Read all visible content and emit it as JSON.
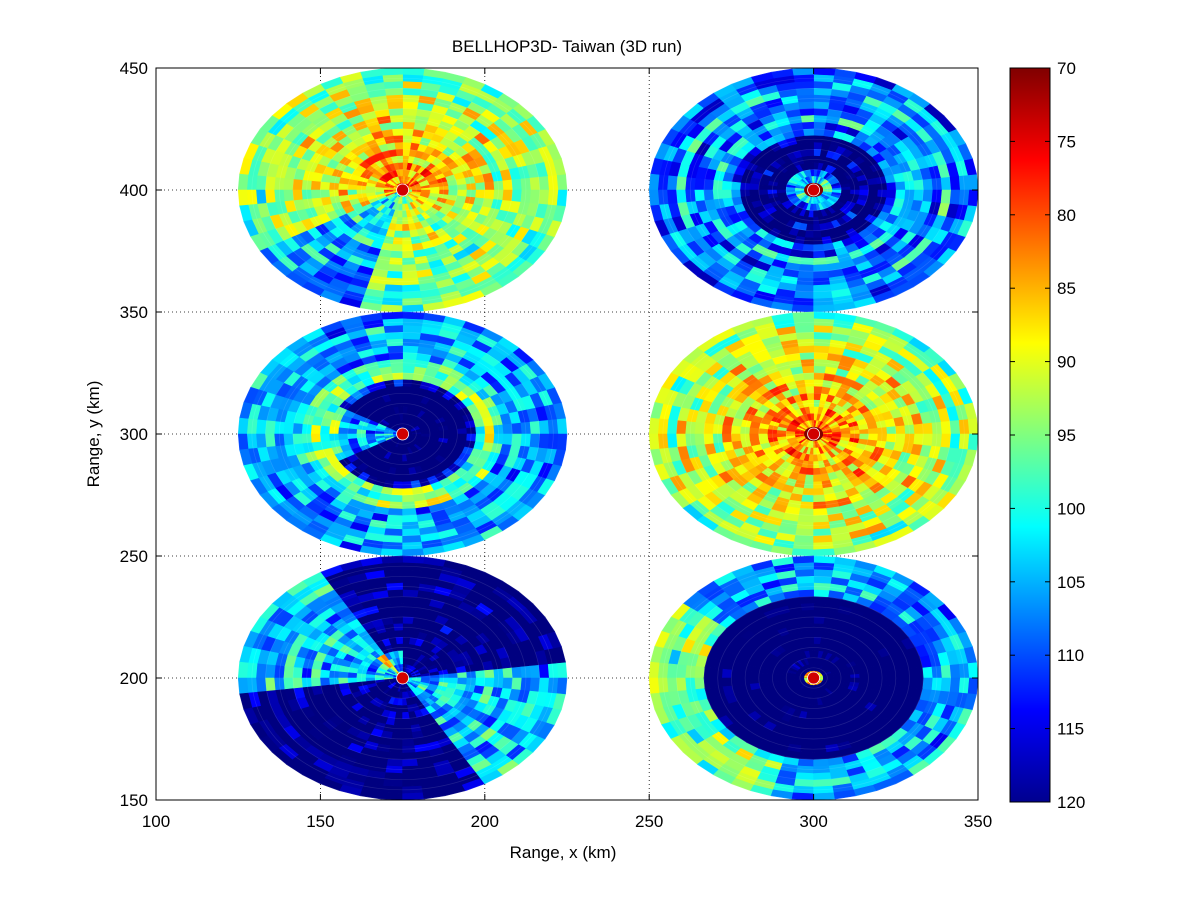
{
  "chart_data": {
    "type": "heatmap",
    "title": "BELLHOP3D- Taiwan (3D run)",
    "xlabel": "Range, x (km)",
    "ylabel": "Range, y (km)",
    "xlim": [
      100,
      350
    ],
    "ylim": [
      150,
      450
    ],
    "xticks": [
      100,
      150,
      200,
      250,
      300,
      350
    ],
    "yticks": [
      150,
      200,
      250,
      300,
      350,
      400,
      450
    ],
    "grid": "dotted",
    "colormap": "jet",
    "colorbar": {
      "range": [
        70,
        120
      ],
      "reversed": true,
      "ticks": [
        70,
        75,
        80,
        85,
        90,
        95,
        100,
        105,
        110,
        115,
        120
      ]
    },
    "panels": [
      {
        "center_x": 175,
        "center_y": 400,
        "radius_km": 50,
        "pattern": "hot-center-broad",
        "base_level": 98
      },
      {
        "center_x": 300,
        "center_y": 400,
        "radius_km": 50,
        "pattern": "rings-dark",
        "base_level": 108
      },
      {
        "center_x": 175,
        "center_y": 300,
        "radius_km": 50,
        "pattern": "shadow-zone-center",
        "base_level": 106
      },
      {
        "center_x": 300,
        "center_y": 300,
        "radius_km": 50,
        "pattern": "rings-bright",
        "base_level": 96
      },
      {
        "center_x": 175,
        "center_y": 200,
        "radius_km": 50,
        "pattern": "cross-beams",
        "base_level": 110
      },
      {
        "center_x": 300,
        "center_y": 200,
        "radius_km": 50,
        "pattern": "shadow-zone-large",
        "base_level": 106
      }
    ]
  }
}
